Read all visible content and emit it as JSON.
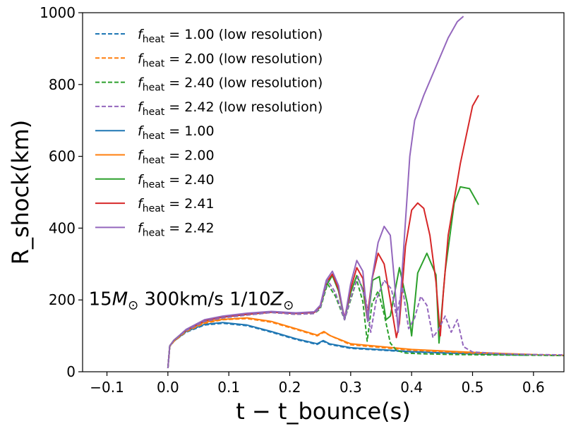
{
  "chart_data": {
    "type": "line",
    "title": "",
    "xlabel": "t − t_bounce(s)",
    "ylabel": "R_shock(km)",
    "xlim": [
      -0.14,
      0.65
    ],
    "ylim": [
      0,
      1000
    ],
    "x_ticks": [
      -0.1,
      0.0,
      0.1,
      0.2,
      0.3,
      0.4,
      0.5,
      0.6
    ],
    "x_tick_labels": [
      "−0.1",
      "0.0",
      "0.1",
      "0.2",
      "0.3",
      "0.4",
      "0.5",
      "0.6"
    ],
    "y_ticks": [
      0,
      200,
      400,
      600,
      800,
      1000
    ],
    "y_tick_labels": [
      "0",
      "200",
      "400",
      "600",
      "800",
      "1000"
    ],
    "legend_position": "top-left",
    "annotation": {
      "text_prefix": "15",
      "text_msun": "M",
      "text_middle": " 300km/s 1/10",
      "text_zsun": "Z",
      "sun_symbol": "⊙",
      "x": -0.13,
      "y": 205
    },
    "series": [
      {
        "name": "f_heat = 1.00 (low resolution)",
        "label_value": " = 1.00 (low resolution)",
        "color": "#1f77b4",
        "dash": true,
        "x": [
          0.0,
          0.003,
          0.01,
          0.03,
          0.06,
          0.09,
          0.13,
          0.17,
          0.21,
          0.245,
          0.255,
          0.265,
          0.3,
          0.4,
          0.5,
          0.6,
          0.65
        ],
        "y": [
          10,
          70,
          85,
          110,
          130,
          135,
          128,
          110,
          90,
          76,
          85,
          76,
          65,
          55,
          50,
          47,
          45
        ]
      },
      {
        "name": "f_heat = 2.00 (low resolution)",
        "label_value": " = 2.00 (low resolution)",
        "color": "#ff7f0e",
        "dash": true,
        "x": [
          0.0,
          0.003,
          0.01,
          0.03,
          0.06,
          0.09,
          0.13,
          0.17,
          0.21,
          0.245,
          0.256,
          0.267,
          0.3,
          0.4,
          0.5,
          0.6,
          0.65
        ],
        "y": [
          10,
          70,
          85,
          112,
          135,
          145,
          148,
          138,
          118,
          100,
          110,
          100,
          75,
          60,
          52,
          48,
          46
        ]
      },
      {
        "name": "f_heat = 2.40 (low resolution)",
        "label_value": " = 2.40 (low resolution)",
        "color": "#2ca02c",
        "dash": true,
        "x": [
          0.0,
          0.003,
          0.01,
          0.03,
          0.06,
          0.09,
          0.13,
          0.17,
          0.21,
          0.24,
          0.25,
          0.262,
          0.275,
          0.29,
          0.3,
          0.31,
          0.32,
          0.327,
          0.335,
          0.345,
          0.355,
          0.365,
          0.375,
          0.39,
          0.42,
          0.47,
          0.52,
          0.6,
          0.65
        ],
        "y": [
          10,
          72,
          88,
          115,
          140,
          150,
          158,
          165,
          160,
          162,
          175,
          245,
          210,
          145,
          200,
          255,
          195,
          85,
          190,
          225,
          160,
          80,
          60,
          52,
          50,
          48,
          47,
          46,
          45
        ]
      },
      {
        "name": "f_heat = 2.42 (low resolution)",
        "label_value": " = 2.42 (low resolution)",
        "color": "#9467bd",
        "dash": true,
        "x": [
          0.0,
          0.003,
          0.01,
          0.03,
          0.06,
          0.09,
          0.13,
          0.17,
          0.21,
          0.24,
          0.25,
          0.262,
          0.275,
          0.29,
          0.3,
          0.312,
          0.325,
          0.333,
          0.342,
          0.355,
          0.367,
          0.375,
          0.385,
          0.395,
          0.405,
          0.415,
          0.425,
          0.435,
          0.445,
          0.455,
          0.465,
          0.475,
          0.485,
          0.5,
          0.55,
          0.6,
          0.65
        ],
        "y": [
          10,
          72,
          88,
          115,
          140,
          150,
          158,
          165,
          160,
          162,
          178,
          255,
          220,
          145,
          205,
          265,
          200,
          110,
          200,
          255,
          230,
          155,
          235,
          120,
          150,
          210,
          185,
          95,
          120,
          155,
          110,
          145,
          70,
          55,
          50,
          48,
          47
        ]
      },
      {
        "name": "f_heat = 1.00",
        "label_value": " = 1.00",
        "color": "#1f77b4",
        "dash": false,
        "x": [
          0.0,
          0.003,
          0.01,
          0.03,
          0.06,
          0.09,
          0.13,
          0.17,
          0.21,
          0.245,
          0.255,
          0.265,
          0.3,
          0.4,
          0.5,
          0.59
        ],
        "y": [
          10,
          72,
          85,
          112,
          132,
          137,
          130,
          112,
          92,
          78,
          87,
          78,
          67,
          56,
          50,
          46
        ]
      },
      {
        "name": "f_heat = 2.00",
        "label_value": " = 2.00",
        "color": "#ff7f0e",
        "dash": false,
        "x": [
          0.0,
          0.003,
          0.01,
          0.03,
          0.06,
          0.09,
          0.13,
          0.17,
          0.21,
          0.245,
          0.256,
          0.267,
          0.3,
          0.4,
          0.5,
          0.6
        ],
        "y": [
          10,
          72,
          86,
          115,
          138,
          146,
          150,
          140,
          120,
          102,
          112,
          100,
          78,
          62,
          54,
          48
        ]
      },
      {
        "name": "f_heat = 2.40",
        "label_value": " = 2.40",
        "color": "#2ca02c",
        "dash": false,
        "x": [
          0.0,
          0.003,
          0.01,
          0.03,
          0.06,
          0.09,
          0.13,
          0.17,
          0.21,
          0.24,
          0.25,
          0.26,
          0.27,
          0.28,
          0.29,
          0.3,
          0.31,
          0.32,
          0.328,
          0.336,
          0.347,
          0.358,
          0.365,
          0.38,
          0.393,
          0.4,
          0.41,
          0.425,
          0.44,
          0.445,
          0.455,
          0.47,
          0.48,
          0.495,
          0.51
        ],
        "y": [
          10,
          72,
          88,
          116,
          142,
          152,
          160,
          166,
          162,
          165,
          180,
          240,
          268,
          225,
          145,
          220,
          268,
          230,
          140,
          255,
          265,
          145,
          155,
          290,
          190,
          100,
          275,
          330,
          270,
          80,
          280,
          470,
          515,
          510,
          465
        ]
      },
      {
        "name": "f_heat = 2.41",
        "label_value": " = 2.41",
        "color": "#d62728",
        "dash": false,
        "x": [
          0.0,
          0.003,
          0.01,
          0.03,
          0.06,
          0.09,
          0.13,
          0.17,
          0.21,
          0.24,
          0.25,
          0.26,
          0.27,
          0.28,
          0.29,
          0.3,
          0.31,
          0.32,
          0.327,
          0.335,
          0.345,
          0.355,
          0.365,
          0.375,
          0.38,
          0.39,
          0.4,
          0.41,
          0.42,
          0.43,
          0.44,
          0.447,
          0.452,
          0.46,
          0.48,
          0.5,
          0.51
        ],
        "y": [
          10,
          72,
          88,
          116,
          142,
          152,
          160,
          166,
          162,
          165,
          182,
          248,
          272,
          230,
          150,
          230,
          290,
          260,
          150,
          258,
          330,
          300,
          200,
          95,
          135,
          350,
          450,
          470,
          455,
          380,
          250,
          100,
          220,
          380,
          580,
          740,
          770
        ]
      },
      {
        "name": "f_heat = 2.42",
        "label_value": " = 2.42",
        "color": "#9467bd",
        "dash": false,
        "x": [
          0.0,
          0.003,
          0.01,
          0.03,
          0.06,
          0.09,
          0.13,
          0.17,
          0.21,
          0.24,
          0.25,
          0.26,
          0.27,
          0.28,
          0.29,
          0.3,
          0.31,
          0.32,
          0.328,
          0.335,
          0.345,
          0.355,
          0.365,
          0.372,
          0.378,
          0.388,
          0.397,
          0.405,
          0.42,
          0.44,
          0.46,
          0.475,
          0.485
        ],
        "y": [
          10,
          72,
          88,
          118,
          145,
          155,
          163,
          168,
          164,
          167,
          185,
          255,
          280,
          240,
          145,
          245,
          310,
          280,
          140,
          260,
          360,
          405,
          380,
          250,
          110,
          370,
          600,
          700,
          770,
          850,
          930,
          975,
          990
        ]
      }
    ]
  }
}
